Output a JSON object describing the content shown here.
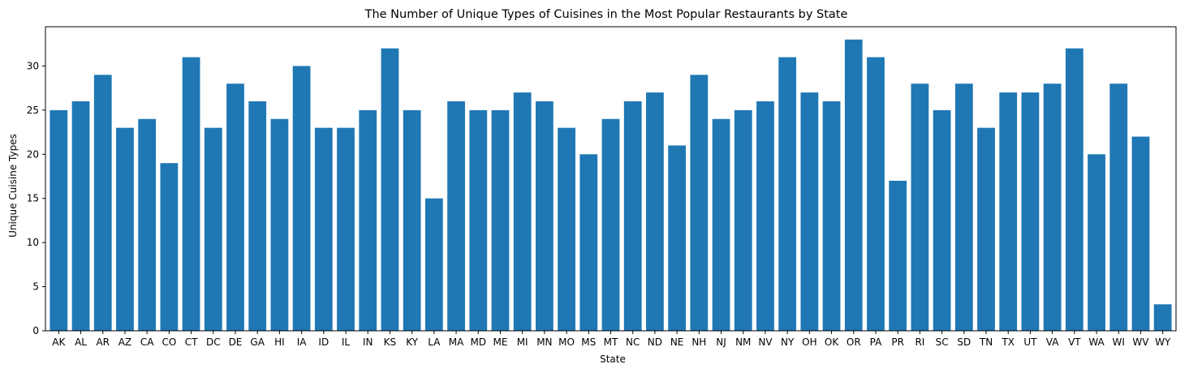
{
  "chart_data": {
    "type": "bar",
    "title": "The Number of Unique Types of Cuisines in the Most Popular Restaurants by State",
    "xlabel": "State",
    "ylabel": "Unique Cuisine Types",
    "categories": [
      "AK",
      "AL",
      "AR",
      "AZ",
      "CA",
      "CO",
      "CT",
      "DC",
      "DE",
      "GA",
      "HI",
      "IA",
      "ID",
      "IL",
      "IN",
      "KS",
      "KY",
      "LA",
      "MA",
      "MD",
      "ME",
      "MI",
      "MN",
      "MO",
      "MS",
      "MT",
      "NC",
      "ND",
      "NE",
      "NH",
      "NJ",
      "NM",
      "NV",
      "NY",
      "OH",
      "OK",
      "OR",
      "PA",
      "PR",
      "RI",
      "SC",
      "SD",
      "TN",
      "TX",
      "UT",
      "VA",
      "VT",
      "WA",
      "WI",
      "WV",
      "WY"
    ],
    "values": [
      25,
      26,
      29,
      23,
      24,
      19,
      31,
      23,
      28,
      26,
      24,
      30,
      23,
      23,
      25,
      32,
      25,
      15,
      26,
      25,
      25,
      27,
      26,
      23,
      20,
      24,
      26,
      27,
      21,
      29,
      24,
      25,
      26,
      31,
      27,
      26,
      33,
      31,
      17,
      28,
      25,
      28,
      23,
      27,
      27,
      28,
      32,
      20,
      28,
      22,
      3
    ],
    "ylim": [
      0,
      34.45
    ],
    "yticks": [
      0,
      5,
      10,
      15,
      20,
      25,
      30
    ],
    "grid": false,
    "bar_color": "#1f77b4"
  }
}
